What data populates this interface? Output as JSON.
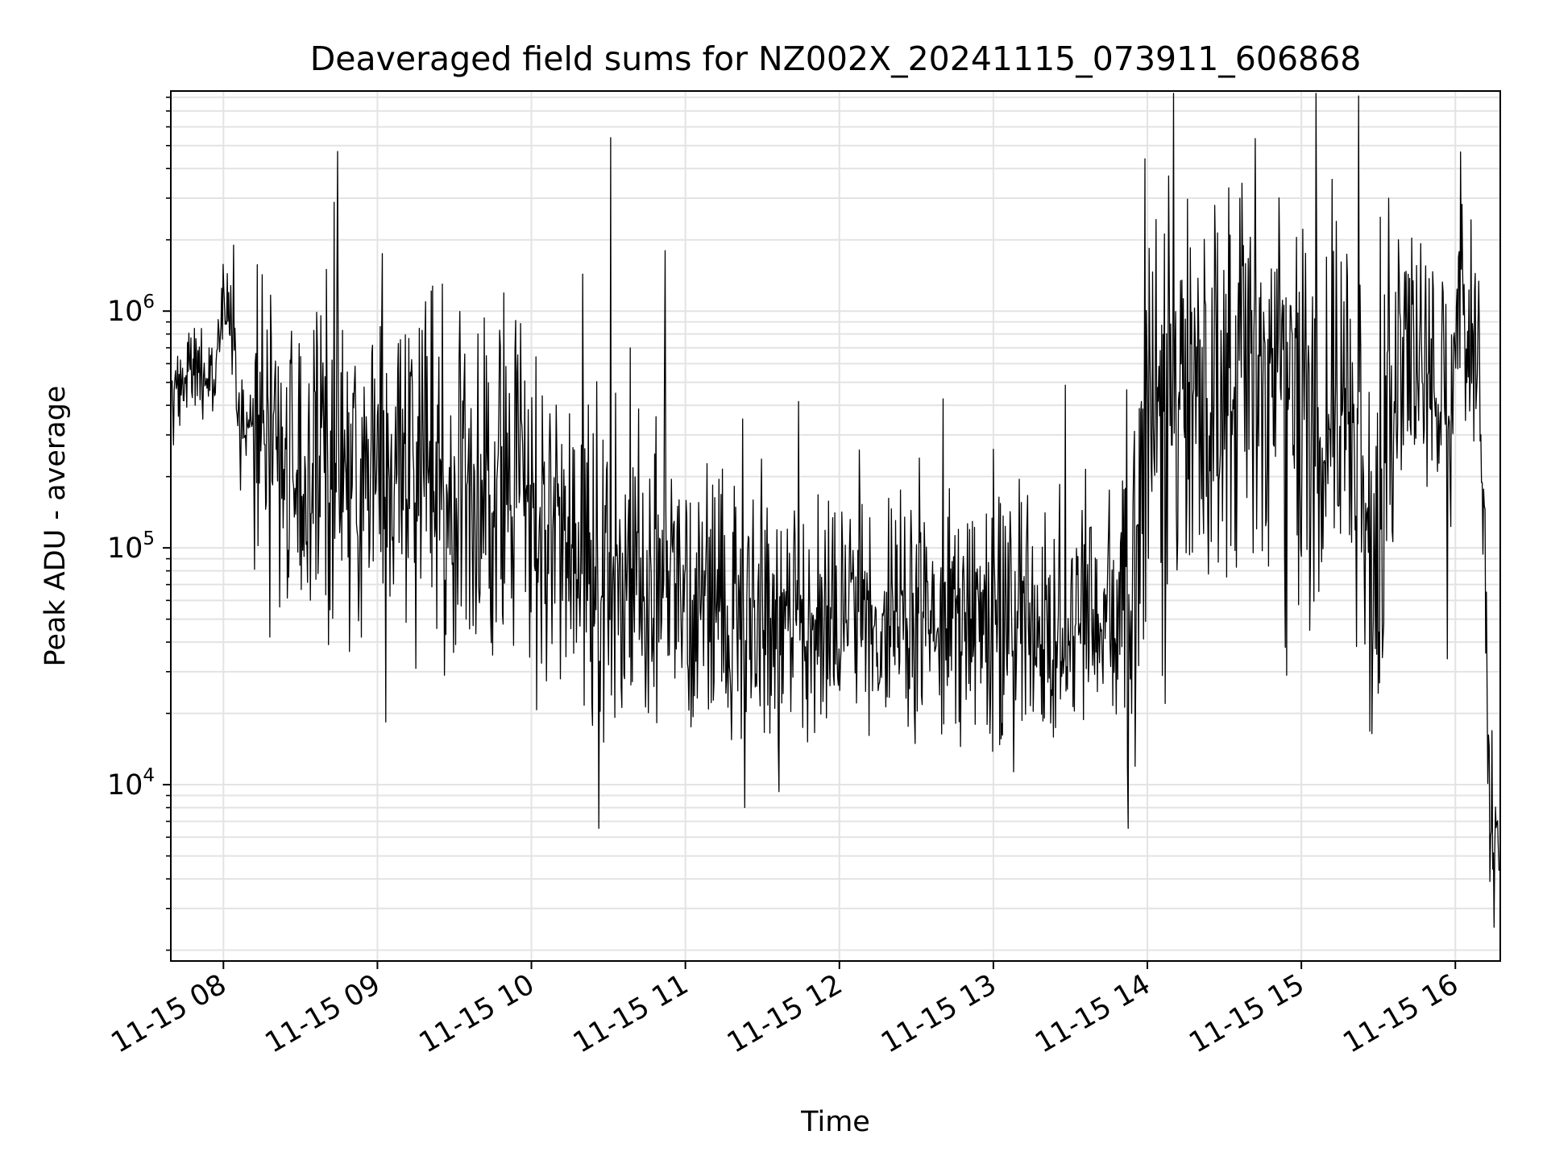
{
  "chart_data": {
    "type": "line",
    "title": "Deaveraged field sums for NZ002X_20241115_073911_606868",
    "xlabel": "Time",
    "ylabel": "Peak ADU - average",
    "y_scale": "log",
    "ylim": [
      1800,
      8500000
    ],
    "xlim": [
      "2024-11-15 07:39:30",
      "2024-11-15 16:17:30"
    ],
    "x_ticks": [
      "11-15 08",
      "11-15 09",
      "11-15 10",
      "11-15 11",
      "11-15 12",
      "11-15 13",
      "11-15 14",
      "11-15 15",
      "11-15 16"
    ],
    "y_ticks": [
      {
        "base": "10",
        "exp": "4",
        "value": 10000
      },
      {
        "base": "10",
        "exp": "5",
        "value": 100000
      },
      {
        "base": "10",
        "exp": "6",
        "value": 1000000
      }
    ],
    "grid": true,
    "line_color": "#000000",
    "grid_color": "#e3e3e3",
    "series": [
      {
        "x": [
          "2024-11-15 07:40",
          "2024-11-15 07:48",
          "2024-11-15 07:56",
          "2024-11-15 08:00",
          "2024-11-15 08:03",
          "2024-11-15 08:06",
          "2024-11-15 08:10",
          "2024-11-15 08:20",
          "2024-11-15 08:30",
          "2024-11-15 08:45",
          "2024-11-15 09:00",
          "2024-11-15 09:20",
          "2024-11-15 09:40",
          "2024-11-15 09:55",
          "2024-11-15 10:10",
          "2024-11-15 10:25",
          "2024-11-15 10:40",
          "2024-11-15 10:55",
          "2024-11-15 11:10",
          "2024-11-15 11:25",
          "2024-11-15 11:40",
          "2024-11-15 12:00",
          "2024-11-15 12:20",
          "2024-11-15 12:40",
          "2024-11-15 13:00",
          "2024-11-15 13:20",
          "2024-11-15 13:35",
          "2024-11-15 13:50",
          "2024-11-15 13:57",
          "2024-11-15 14:00",
          "2024-11-15 14:10",
          "2024-11-15 14:25",
          "2024-11-15 14:40",
          "2024-11-15 14:55",
          "2024-11-15 15:10",
          "2024-11-15 15:20",
          "2024-11-15 15:30",
          "2024-11-15 15:40",
          "2024-11-15 15:50",
          "2024-11-15 15:57",
          "2024-11-15 16:02",
          "2024-11-15 16:05",
          "2024-11-15 16:08",
          "2024-11-15 16:11",
          "2024-11-15 16:13",
          "2024-11-15 16:15",
          "2024-11-15 16:17"
        ],
        "values": [
          420000,
          600000,
          520000,
          1000000,
          900000,
          380000,
          300000,
          260000,
          200000,
          180000,
          230000,
          240000,
          200000,
          160000,
          110000,
          80000,
          70000,
          55000,
          55000,
          52000,
          48000,
          52000,
          55000,
          52000,
          50000,
          45000,
          50000,
          60000,
          90000,
          300000,
          350000,
          400000,
          500000,
          400000,
          300000,
          350000,
          70000,
          900000,
          600000,
          300000,
          900000,
          1000000,
          700000,
          150000,
          12000,
          7000,
          5500
        ],
        "spikes": [
          [
            "2024-11-15 08:04",
            1900000
          ],
          [
            "2024-11-15 08:40",
            1500000
          ],
          [
            "2024-11-15 09:02",
            1750000
          ],
          [
            "2024-11-15 10:31",
            5400000
          ],
          [
            "2024-11-15 10:52",
            1800000
          ],
          [
            "2024-11-15 13:59",
            4400000
          ],
          [
            "2024-11-15 14:36",
            3000000
          ],
          [
            "2024-11-15 15:12",
            3600000
          ],
          [
            "2024-11-15 15:34",
            3000000
          ],
          [
            "2024-11-15 16:02",
            4700000
          ]
        ],
        "dips": [
          [
            "2024-11-15 08:18",
            42000
          ],
          [
            "2024-11-15 08:41",
            39000
          ],
          [
            "2024-11-15 09:15",
            31000
          ],
          [
            "2024-11-15 09:26",
            29000
          ],
          [
            "2024-11-15 11:47",
            23000
          ],
          [
            "2024-11-15 12:00",
            25000
          ],
          [
            "2024-11-15 13:04",
            24000
          ],
          [
            "2024-11-15 13:26",
            23000
          ],
          [
            "2024-11-15 13:54",
            20000
          ],
          [
            "2024-11-15 14:07",
            22000
          ],
          [
            "2024-11-15 15:57",
            34000
          ],
          [
            "2024-11-15 16:15",
            2500
          ]
        ]
      }
    ]
  }
}
